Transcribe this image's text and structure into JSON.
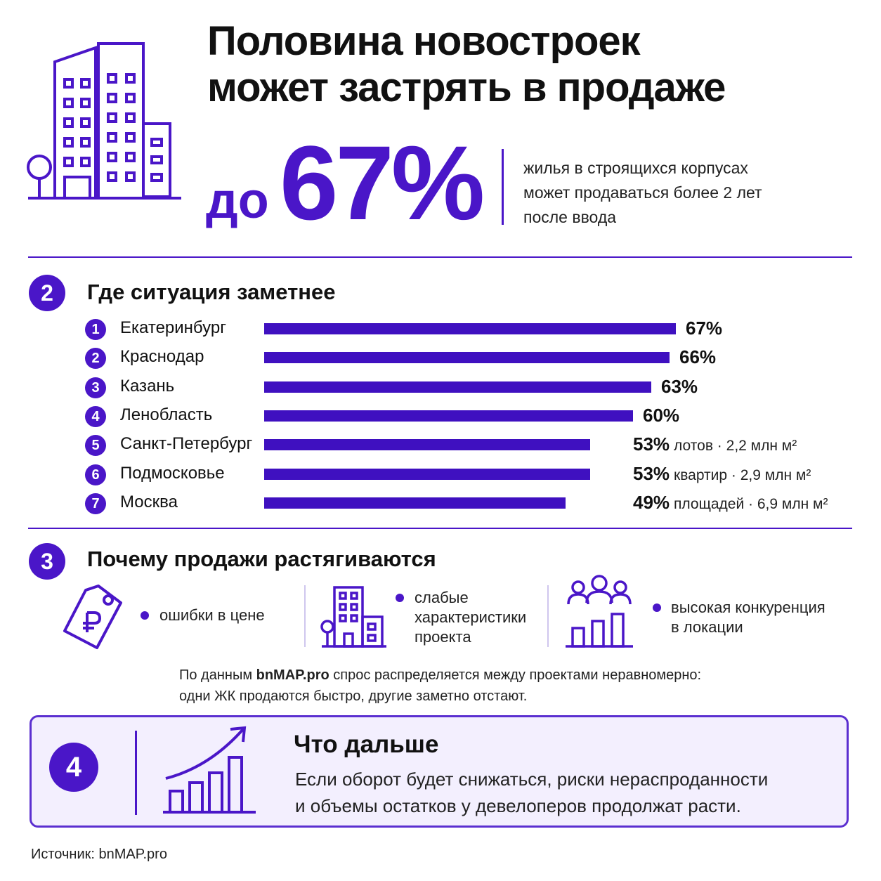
{
  "title_line1": "Половина новостроек",
  "title_line2": "может застрять в продаже",
  "hero": {
    "prefix": "до",
    "value": "67%",
    "desc_line1": "жилья в строящихся корпусах",
    "desc_line2": "может продаваться более 2 лет",
    "desc_line3": "после ввода"
  },
  "section2": {
    "number": "2",
    "title": "Где ситуация заметнее"
  },
  "chart_data": {
    "type": "bar",
    "orientation": "horizontal",
    "title": "Где ситуация заметнее",
    "categories": [
      "Екатеринбург",
      "Краснодар",
      "Казань",
      "Ленобласть",
      "Санкт-Петербург",
      "Подмосковье",
      "Москва"
    ],
    "values": [
      67,
      66,
      63,
      60,
      53,
      53,
      49
    ],
    "ranks": [
      "1",
      "2",
      "3",
      "4",
      "5",
      "6",
      "7"
    ],
    "value_labels": [
      "67%",
      "66%",
      "63%",
      "60%",
      "53%",
      "53%",
      "49%"
    ],
    "annotations": [
      "",
      "",
      "",
      "",
      "лотов · 2,2 млн м²",
      "квартир · 2,9 млн м²",
      "площадей · 6,9 млн м²"
    ],
    "xlim": [
      0,
      67
    ],
    "bar_color": "#3f10c0"
  },
  "section3": {
    "number": "3",
    "title": "Почему продажи растягиваются",
    "reasons": [
      {
        "line1": "ошибки в цене",
        "line2": "",
        "line3": "",
        "icon": "price-tag-ruble-icon"
      },
      {
        "line1": "слабые",
        "line2": "характеристики",
        "line3": "проекта",
        "icon": "building-icon"
      },
      {
        "line1": "высокая конкуренция",
        "line2": "в локации",
        "line3": "",
        "icon": "people-bars-icon"
      }
    ],
    "note_line1_prefix": "По данным ",
    "note_line1_brand": "bnMAP.pro",
    "note_line1_suffix": " спрос распределяется между проектами неравномерно:",
    "note_line2": "одни ЖК продаются быстро, другие заметно отстают."
  },
  "section4": {
    "number": "4",
    "title": "Что дальше",
    "text_line1": "Если оборот будет снижаться, риски нераспроданности",
    "text_line2": "и объемы остатков у девелоперов продолжат расти.",
    "icon": "growth-chart-icon"
  },
  "source": "Источник: bnMAP.pro",
  "colors": {
    "accent": "#4a16c8",
    "box_bg": "#f3effe",
    "box_border": "#5b2fd0"
  }
}
